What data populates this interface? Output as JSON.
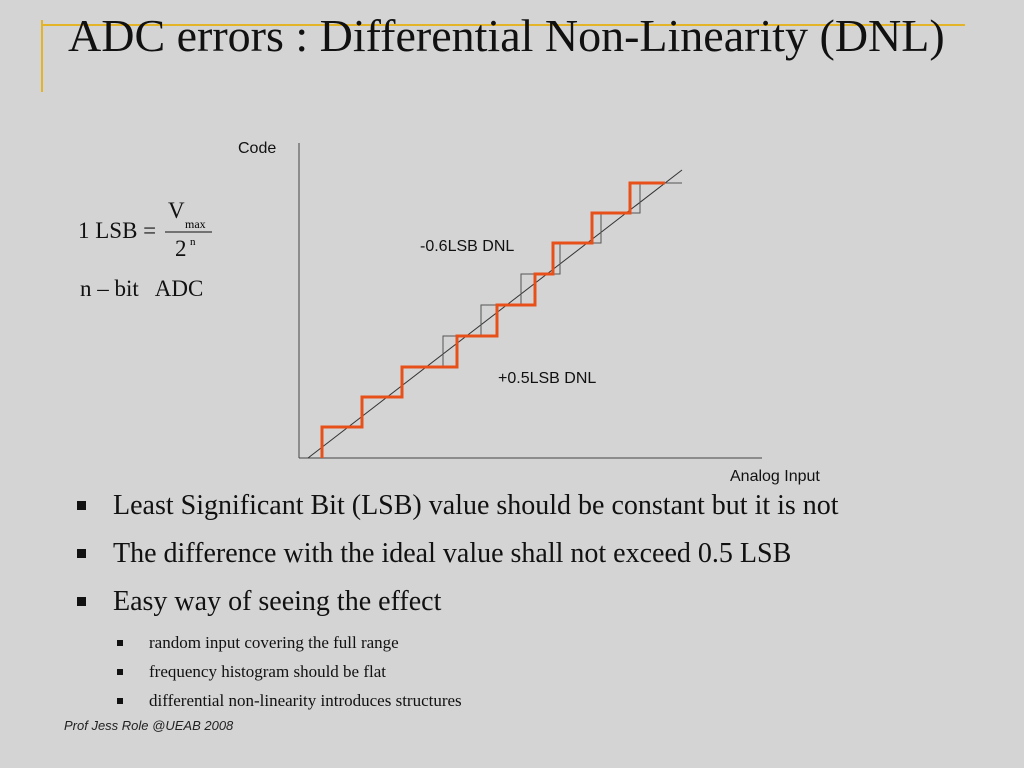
{
  "title": "ADC errors : Differential Non-Linearity (DNL)",
  "diagram": {
    "y_axis_label": "Code",
    "x_axis_label": "Analog Input",
    "annotation_top": "-0.6LSB DNL",
    "annotation_bottom": "+0.5LSB DNL"
  },
  "formula": {
    "lhs": "1 LSB =",
    "numerator": "V",
    "numerator_sub": "max",
    "denominator": "2",
    "denominator_sup": "n",
    "line2": "n – bit   ADC"
  },
  "bullets": [
    {
      "text": "Least Significant Bit (LSB) value should be constant but it is not"
    },
    {
      "text": "The difference with the ideal value shall not exceed 0.5 LSB"
    },
    {
      "text": "Easy way of seeing the effect",
      "sub": [
        "random input covering the full range",
        "frequency histogram should be flat",
        "differential non-linearity introduces structures"
      ]
    }
  ],
  "footer": "Prof Jess Role @UEAB 2008"
}
